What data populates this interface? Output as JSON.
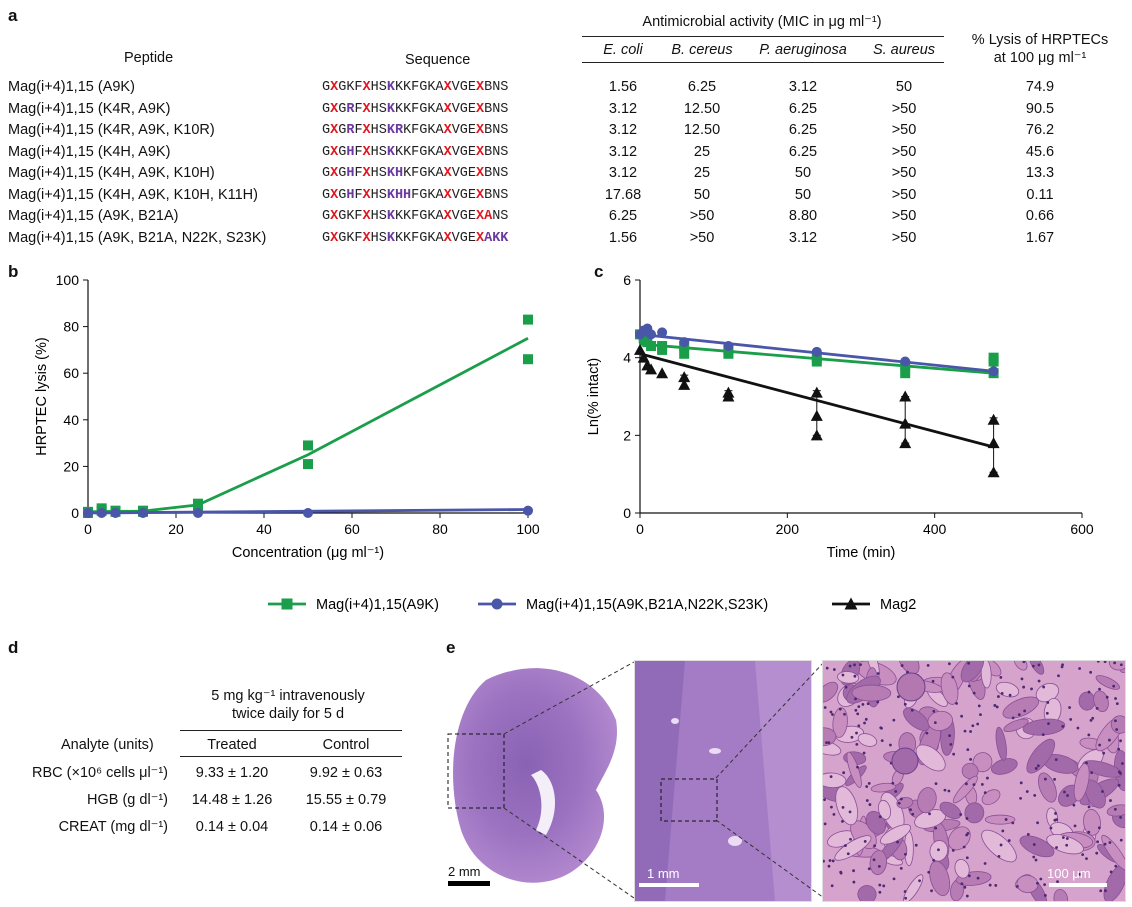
{
  "panels": {
    "a": "a",
    "b": "b",
    "c": "c",
    "d": "d",
    "e": "e"
  },
  "table_a": {
    "col_peptide": "Peptide",
    "col_sequence": "Sequence",
    "col_mic_group": "Antimicrobial activity (MIC in μg ml⁻¹)",
    "col_mic": [
      "E. coli",
      "B. cereus",
      "P. aeruginosa",
      "S. aureus"
    ],
    "col_lysis": [
      "% Lysis of HRPTECs",
      "at 100 μg ml⁻¹"
    ],
    "rows": [
      {
        "peptide": "Mag(i+4)1,15 (A9K)",
        "seq": "nG|xX|nGKF|xX|nHS|mK|nKKFGKA|xX|nVGE|xX|nBNS",
        "mic": [
          "1.56",
          "6.25",
          "3.12",
          "50"
        ],
        "lysis": "74.9"
      },
      {
        "peptide": "Mag(i+4)1,15 (K4R, A9K)",
        "seq": "nG|xX|nG|mR|nF|xX|nHS|mK|nKKFGKA|xX|nVGE|xX|nBNS",
        "mic": [
          "3.12",
          "12.50",
          "6.25",
          ">50"
        ],
        "lysis": "90.5"
      },
      {
        "peptide": "Mag(i+4)1,15 (K4R, A9K, K10R)",
        "seq": "nG|xX|nG|mR|nF|xX|nHS|mKR|nKFGKA|xX|nVGE|xX|nBNS",
        "mic": [
          "3.12",
          "12.50",
          "6.25",
          ">50"
        ],
        "lysis": "76.2"
      },
      {
        "peptide": "Mag(i+4)1,15 (K4H, A9K)",
        "seq": "nG|xX|nG|mH|nF|xX|nHS|mK|nKKFGKA|xX|nVGE|xX|nBNS",
        "mic": [
          "3.12",
          "25",
          "6.25",
          ">50"
        ],
        "lysis": "45.6"
      },
      {
        "peptide": "Mag(i+4)1,15 (K4H, A9K, K10H)",
        "seq": "nG|xX|nG|mH|nF|xX|nHS|mKH|nKFGKA|xX|nVGE|xX|nBNS",
        "mic": [
          "3.12",
          "25",
          "50",
          ">50"
        ],
        "lysis": "13.3"
      },
      {
        "peptide": "Mag(i+4)1,15 (K4H, A9K, K10H, K11H)",
        "seq": "nG|xX|nG|mH|nF|xX|nHS|mKHH|nFGKA|xX|nVGE|xX|nBNS",
        "mic": [
          "17.68",
          "50",
          "50",
          ">50"
        ],
        "lysis": "0.11"
      },
      {
        "peptide": "Mag(i+4)1,15 (A9K, B21A)",
        "seq": "nG|xX|nGKF|xX|nHS|mK|nKKFGKA|xX|nVGE|xXA|nNS",
        "mic": [
          "6.25",
          ">50",
          "8.80",
          ">50"
        ],
        "lysis": "0.66"
      },
      {
        "peptide": "Mag(i+4)1,15 (A9K, B21A, N22K, S23K)",
        "seq": "nG|xX|nGKF|xX|nHS|mK|nKKFGKA|xX|nVGE|xX|mAKK",
        "mic": [
          "1.56",
          ">50",
          "3.12",
          ">50"
        ],
        "lysis": "1.67"
      }
    ]
  },
  "chart_data": [
    {
      "type": "line",
      "panel": "b",
      "xlabel": "Concentration (μg ml⁻¹)",
      "ylabel": "HRPTEC lysis (%)",
      "xlim": [
        0,
        100
      ],
      "ylim": [
        0,
        100
      ],
      "xticks": [
        "0",
        "20",
        "40",
        "60",
        "80",
        "100"
      ],
      "yticks": [
        "0",
        "20",
        "40",
        "60",
        "80",
        "100"
      ],
      "series": [
        {
          "name": "Mag(i+4)1,15(A9K)",
          "color": "#1a9e4a",
          "marker": "square",
          "points": [
            [
              0,
              0
            ],
            [
              0,
              0.5
            ],
            [
              3.1,
              1
            ],
            [
              3.1,
              2
            ],
            [
              6.25,
              0.5
            ],
            [
              6.25,
              1
            ],
            [
              12.5,
              0.5
            ],
            [
              12.5,
              1
            ],
            [
              25,
              3
            ],
            [
              25,
              4
            ],
            [
              50,
              21
            ],
            [
              50,
              29
            ],
            [
              100,
              66
            ],
            [
              100,
              83
            ]
          ],
          "fit": [
            [
              0,
              0.5
            ],
            [
              12.5,
              0.8
            ],
            [
              25,
              3.5
            ],
            [
              50,
              25
            ],
            [
              75,
              50
            ],
            [
              100,
              75
            ]
          ]
        },
        {
          "name": "Mag(i+4)1,15(A9K,B21A,N22K,S23K)",
          "color": "#4a56a8",
          "marker": "circle",
          "points": [
            [
              0,
              0
            ],
            [
              3.1,
              0
            ],
            [
              6.25,
              0
            ],
            [
              12.5,
              0
            ],
            [
              25,
              0
            ],
            [
              50,
              0
            ],
            [
              100,
              1
            ]
          ],
          "fit": [
            [
              0,
              0
            ],
            [
              100,
              1.5
            ]
          ]
        }
      ]
    },
    {
      "type": "line",
      "panel": "c",
      "xlabel": "Time (min)",
      "ylabel": "Ln(% intact)",
      "xlim": [
        0,
        600
      ],
      "ylim": [
        0,
        6
      ],
      "xticks": [
        "0",
        "200",
        "400",
        "600"
      ],
      "yticks": [
        "0",
        "2",
        "4",
        "6"
      ],
      "series": [
        {
          "name": "Mag(i+4)1,15(A9K)",
          "color": "#1a9e4a",
          "marker": "square",
          "points": [
            [
              0,
              4.6
            ],
            [
              5,
              4.5
            ],
            [
              10,
              4.4
            ],
            [
              15,
              4.3
            ],
            [
              30,
              4.3
            ],
            [
              30,
              4.2
            ],
            [
              60,
              4.1
            ],
            [
              60,
              4.3
            ],
            [
              120,
              4.2
            ],
            [
              120,
              4.1
            ],
            [
              240,
              3.9
            ],
            [
              240,
              4.0
            ],
            [
              360,
              3.6
            ],
            [
              360,
              3.8
            ],
            [
              480,
              3.6
            ],
            [
              480,
              3.9
            ],
            [
              480,
              4.0
            ]
          ],
          "fit": [
            [
              0,
              4.35
            ],
            [
              480,
              3.6
            ]
          ]
        },
        {
          "name": "Mag(i+4)1,15(A9K,B21A,N22K,S23K)",
          "color": "#4a56a8",
          "marker": "circle",
          "points": [
            [
              0,
              4.6
            ],
            [
              5,
              4.7
            ],
            [
              10,
              4.75
            ],
            [
              15,
              4.6
            ],
            [
              30,
              4.65
            ],
            [
              60,
              4.4
            ],
            [
              120,
              4.3
            ],
            [
              240,
              4.15
            ],
            [
              360,
              3.9
            ],
            [
              480,
              3.65
            ]
          ],
          "fit": [
            [
              0,
              4.6
            ],
            [
              480,
              3.65
            ]
          ]
        },
        {
          "name": "Mag2",
          "color": "#111111",
          "marker": "triangle",
          "points": [
            [
              0,
              4.2
            ],
            [
              5,
              4.0
            ],
            [
              10,
              3.8
            ],
            [
              15,
              3.7
            ],
            [
              30,
              3.6
            ],
            [
              60,
              3.3
            ],
            [
              60,
              3.5
            ],
            [
              120,
              3.0
            ],
            [
              120,
              3.1
            ],
            [
              240,
              2.0
            ],
            [
              240,
              2.5
            ],
            [
              240,
              3.1
            ],
            [
              360,
              1.8
            ],
            [
              360,
              2.3
            ],
            [
              360,
              3.0
            ],
            [
              480,
              1.05
            ],
            [
              480,
              1.8
            ],
            [
              480,
              2.4
            ]
          ],
          "fit": [
            [
              0,
              4.1
            ],
            [
              480,
              1.7
            ]
          ]
        }
      ]
    }
  ],
  "legend": [
    {
      "name": "Mag(i+4)1,15(A9K)",
      "color": "#1a9e4a",
      "marker": "square"
    },
    {
      "name": "Mag(i+4)1,15(A9K,B21A,N22K,S23K)",
      "color": "#4a56a8",
      "marker": "circle"
    },
    {
      "name": "Mag2",
      "color": "#111111",
      "marker": "triangle"
    }
  ],
  "table_d": {
    "group_header": [
      "5 mg kg⁻¹ intravenously",
      "twice daily for 5 d"
    ],
    "col_analyte": "Analyte (units)",
    "col_treated": "Treated",
    "col_control": "Control",
    "rows": [
      {
        "analyte": "RBC (×10⁶ cells μl⁻¹)",
        "treated": "9.33 ± 1.20",
        "control": "9.92 ± 0.63"
      },
      {
        "analyte": "HGB (g dl⁻¹)",
        "treated": "14.48 ± 1.26",
        "control": "15.55 ± 0.79"
      },
      {
        "analyte": "CREAT (mg dl⁻¹)",
        "treated": "0.14 ± 0.04",
        "control": "0.14 ± 0.06"
      }
    ]
  },
  "histology": {
    "scale_bars": [
      "2 mm",
      "1 mm",
      "100 μm"
    ],
    "colors": {
      "tissue": "#9a6cb8",
      "dark": "#6b3f8f",
      "pink": "#d9a8d0"
    }
  }
}
